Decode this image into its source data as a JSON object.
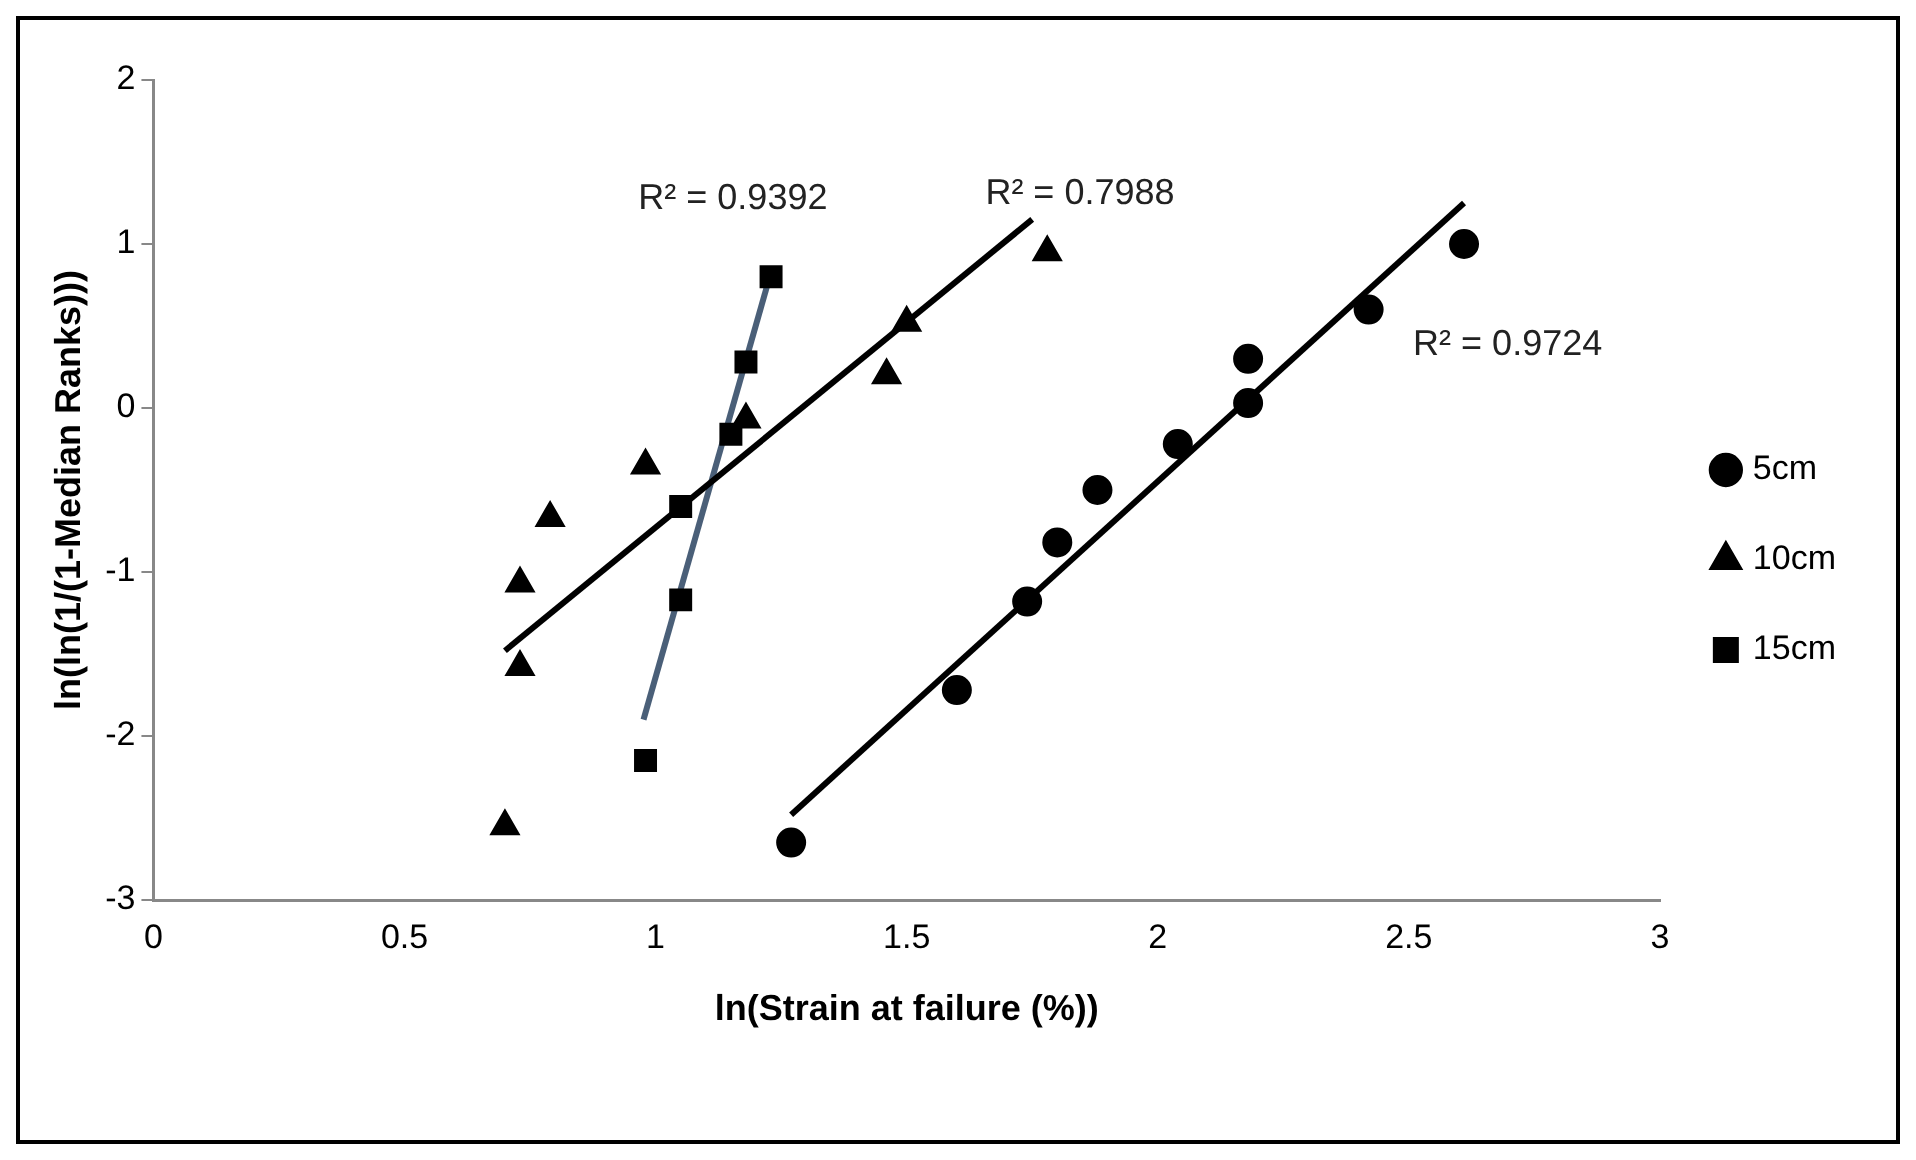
{
  "chart_data": {
    "type": "scatter",
    "xlabel": "ln(Strain at failure (%))",
    "ylabel": "ln(ln(1/(1-Median Ranks)))",
    "xlim": [
      0,
      3
    ],
    "xticks": [
      0,
      0.5,
      1,
      1.5,
      2,
      2.5,
      3
    ],
    "ylim": [
      -3,
      2
    ],
    "yticks": [
      -3,
      -2,
      -1,
      0,
      1,
      2
    ],
    "grid": false,
    "legend": "right",
    "series": [
      {
        "name": "5cm",
        "color": "#000000",
        "marker": "circle",
        "x": [
          1.27,
          1.6,
          1.74,
          1.8,
          1.88,
          2.04,
          2.18,
          2.18,
          2.42,
          2.61
        ],
        "values": [
          -2.65,
          -1.72,
          -1.18,
          -0.82,
          -0.5,
          -0.22,
          0.03,
          0.3,
          0.6,
          1.0
        ]
      },
      {
        "name": "10cm",
        "color": "#000000",
        "marker": "triangle",
        "x": [
          0.7,
          0.73,
          0.73,
          0.79,
          0.98,
          1.18,
          1.46,
          1.5,
          1.78
        ],
        "values": [
          -2.55,
          -1.58,
          -1.07,
          -0.67,
          -0.35,
          -0.07,
          0.2,
          0.52,
          0.95
        ]
      },
      {
        "name": "15cm",
        "color": "#000000",
        "marker": "square",
        "x": [
          0.98,
          1.05,
          1.05,
          1.15,
          1.18,
          1.23
        ],
        "values": [
          -2.15,
          -1.17,
          -0.6,
          -0.16,
          0.28,
          0.8
        ]
      },
      {
        "type": "line",
        "color": "#000000",
        "marker": "none",
        "line_style": "solid",
        "x": [
          1.27,
          2.61
        ],
        "values": [
          -2.48,
          1.25
        ]
      },
      {
        "type": "line",
        "color": "#000000",
        "marker": "none",
        "line_style": "solid",
        "x": [
          0.7,
          1.75
        ],
        "values": [
          -1.48,
          1.15
        ]
      },
      {
        "type": "line",
        "color": "#4a5f78",
        "marker": "none",
        "line_style": "solid",
        "x": [
          0.976,
          1.23
        ],
        "values": [
          -1.9,
          0.83
        ]
      }
    ],
    "annotations": [
      "R² = 0.9392",
      "R² = 0.7988",
      "R² = 0.9724"
    ]
  }
}
